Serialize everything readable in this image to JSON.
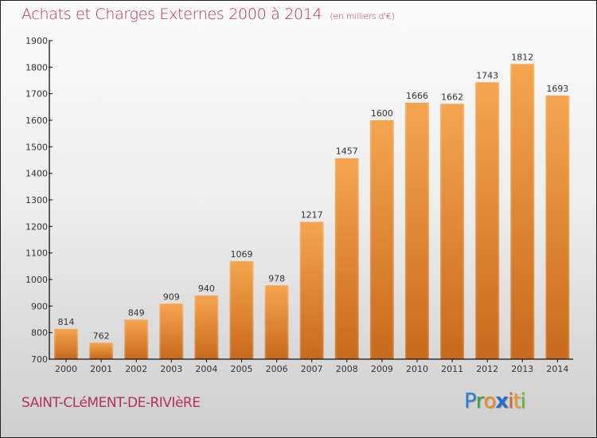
{
  "chart_data": {
    "type": "bar",
    "title": "Achats et Charges Externes 2000 à 2014",
    "subtitle": "(en milliers d'€)",
    "xlabel": "",
    "ylabel": "",
    "categories": [
      "2000",
      "2001",
      "2002",
      "2003",
      "2004",
      "2005",
      "2006",
      "2007",
      "2008",
      "2009",
      "2010",
      "2011",
      "2012",
      "2013",
      "2014"
    ],
    "values": [
      814,
      762,
      849,
      909,
      940,
      1069,
      978,
      1217,
      1457,
      1600,
      1666,
      1662,
      1743,
      1812,
      1693
    ],
    "ylim": [
      700,
      1900
    ],
    "yticks": [
      700,
      800,
      900,
      1000,
      1100,
      1200,
      1300,
      1400,
      1500,
      1600,
      1700,
      1800,
      1900
    ],
    "grid": false,
    "legend": "none",
    "bar_color_top": "#f5a54f",
    "bar_color_bottom": "#c8691b"
  },
  "footer": {
    "city": "SAINT-CLéMENT-DE-RIVIèRE",
    "logo_letters": [
      {
        "ch": "P",
        "color": "#2a7fd4"
      },
      {
        "ch": "r",
        "color": "#3aa03a"
      },
      {
        "ch": "o",
        "color": "#f08a1c"
      },
      {
        "ch": "x",
        "color": "#1f6fc9"
      },
      {
        "ch": "i",
        "color": "#ea5a1c"
      },
      {
        "ch": "t",
        "color": "#f39a1c"
      },
      {
        "ch": "i",
        "color": "#5cb82e"
      }
    ]
  },
  "colors": {
    "title": "#b5305a",
    "axis": "#111111"
  }
}
